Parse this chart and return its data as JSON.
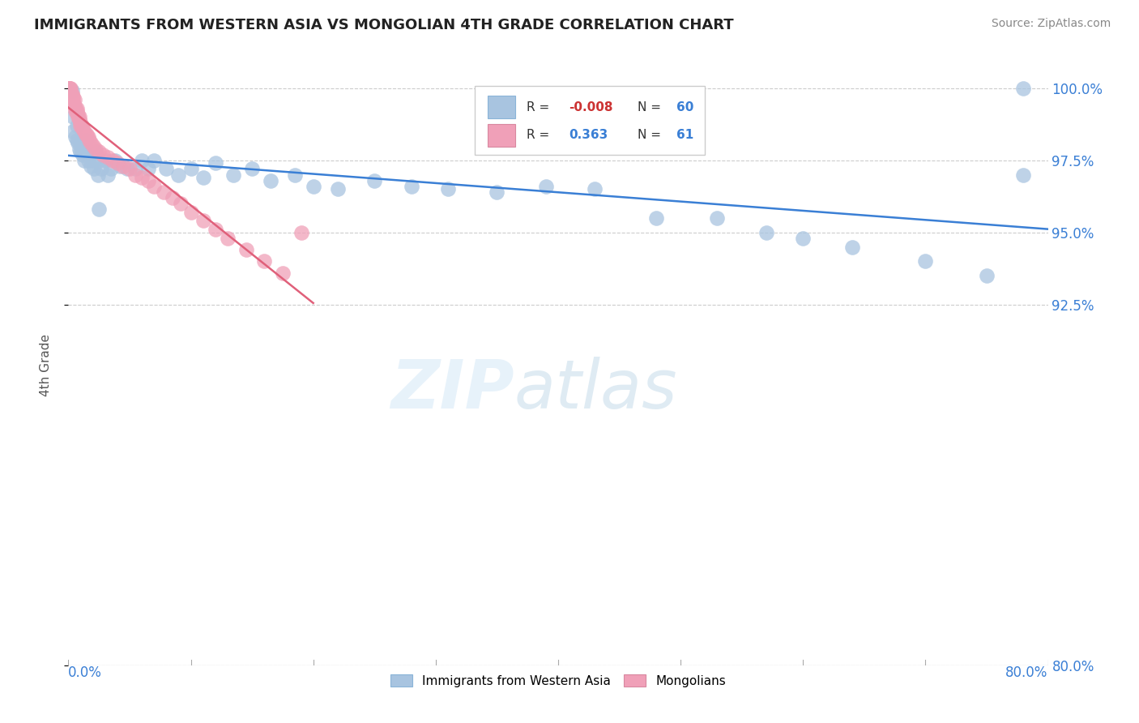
{
  "title": "IMMIGRANTS FROM WESTERN ASIA VS MONGOLIAN 4TH GRADE CORRELATION CHART",
  "source_text": "Source: ZipAtlas.com",
  "ylabel": "4th Grade",
  "legend_label_blue": "Immigrants from Western Asia",
  "legend_label_pink": "Mongolians",
  "blue_scatter_color": "#a8c4e0",
  "pink_scatter_color": "#f0a0b8",
  "trend_blue_color": "#3a7fd5",
  "trend_pink_color": "#e0607a",
  "right_tick_color": "#3a7fd5",
  "bottom_label_color": "#3a7fd5",
  "grid_color": "#cccccc",
  "blue_x": [
    0.003,
    0.004,
    0.004,
    0.006,
    0.007,
    0.007,
    0.008,
    0.009,
    0.01,
    0.01,
    0.011,
    0.012,
    0.013,
    0.014,
    0.015,
    0.016,
    0.018,
    0.02,
    0.021,
    0.022,
    0.024,
    0.025,
    0.027,
    0.03,
    0.032,
    0.035,
    0.038,
    0.042,
    0.048,
    0.055,
    0.06,
    0.065,
    0.07,
    0.08,
    0.09,
    0.1,
    0.11,
    0.12,
    0.135,
    0.15,
    0.165,
    0.185,
    0.2,
    0.22,
    0.25,
    0.28,
    0.31,
    0.35,
    0.39,
    0.43,
    0.48,
    0.53,
    0.57,
    0.6,
    0.64,
    0.7,
    0.75,
    0.78,
    0.025,
    0.78
  ],
  "blue_y": [
    0.999,
    0.99,
    0.985,
    0.983,
    0.987,
    0.982,
    0.981,
    0.979,
    0.981,
    0.978,
    0.978,
    0.977,
    0.975,
    0.982,
    0.978,
    0.975,
    0.973,
    0.975,
    0.972,
    0.978,
    0.97,
    0.975,
    0.972,
    0.975,
    0.97,
    0.972,
    0.975,
    0.973,
    0.972,
    0.972,
    0.975,
    0.972,
    0.975,
    0.972,
    0.97,
    0.972,
    0.969,
    0.974,
    0.97,
    0.972,
    0.968,
    0.97,
    0.966,
    0.965,
    0.968,
    0.966,
    0.965,
    0.964,
    0.966,
    0.965,
    0.955,
    0.955,
    0.95,
    0.948,
    0.945,
    0.94,
    0.935,
    0.97,
    0.958,
    1.0
  ],
  "pink_x": [
    0.0003,
    0.0005,
    0.0007,
    0.0008,
    0.001,
    0.001,
    0.001,
    0.002,
    0.002,
    0.002,
    0.003,
    0.003,
    0.003,
    0.004,
    0.004,
    0.004,
    0.005,
    0.005,
    0.006,
    0.006,
    0.007,
    0.007,
    0.008,
    0.008,
    0.009,
    0.009,
    0.01,
    0.01,
    0.011,
    0.012,
    0.013,
    0.014,
    0.015,
    0.016,
    0.017,
    0.018,
    0.02,
    0.022,
    0.025,
    0.028,
    0.032,
    0.036,
    0.04,
    0.045,
    0.05,
    0.055,
    0.06,
    0.065,
    0.07,
    0.078,
    0.085,
    0.092,
    0.1,
    0.11,
    0.12,
    0.13,
    0.145,
    0.16,
    0.175,
    0.19
  ],
  "pink_y": [
    1.0,
    1.0,
    1.0,
    1.0,
    1.0,
    0.999,
    0.998,
    1.0,
    0.998,
    0.997,
    0.998,
    0.997,
    0.996,
    0.997,
    0.996,
    0.995,
    0.996,
    0.994,
    0.993,
    0.992,
    0.993,
    0.992,
    0.991,
    0.99,
    0.99,
    0.989,
    0.988,
    0.987,
    0.987,
    0.986,
    0.985,
    0.984,
    0.984,
    0.983,
    0.982,
    0.981,
    0.98,
    0.979,
    0.978,
    0.977,
    0.976,
    0.975,
    0.974,
    0.973,
    0.972,
    0.97,
    0.969,
    0.968,
    0.966,
    0.964,
    0.962,
    0.96,
    0.957,
    0.954,
    0.951,
    0.948,
    0.944,
    0.94,
    0.936,
    0.95
  ],
  "xlim": [
    0,
    0.8
  ],
  "ylim": [
    0.8,
    1.008
  ],
  "yticks": [
    0.8,
    0.925,
    0.95,
    0.975,
    1.0
  ],
  "ytick_labels": [
    "80.0%",
    "92.5%",
    "95.0%",
    "97.5%",
    "100.0%"
  ]
}
